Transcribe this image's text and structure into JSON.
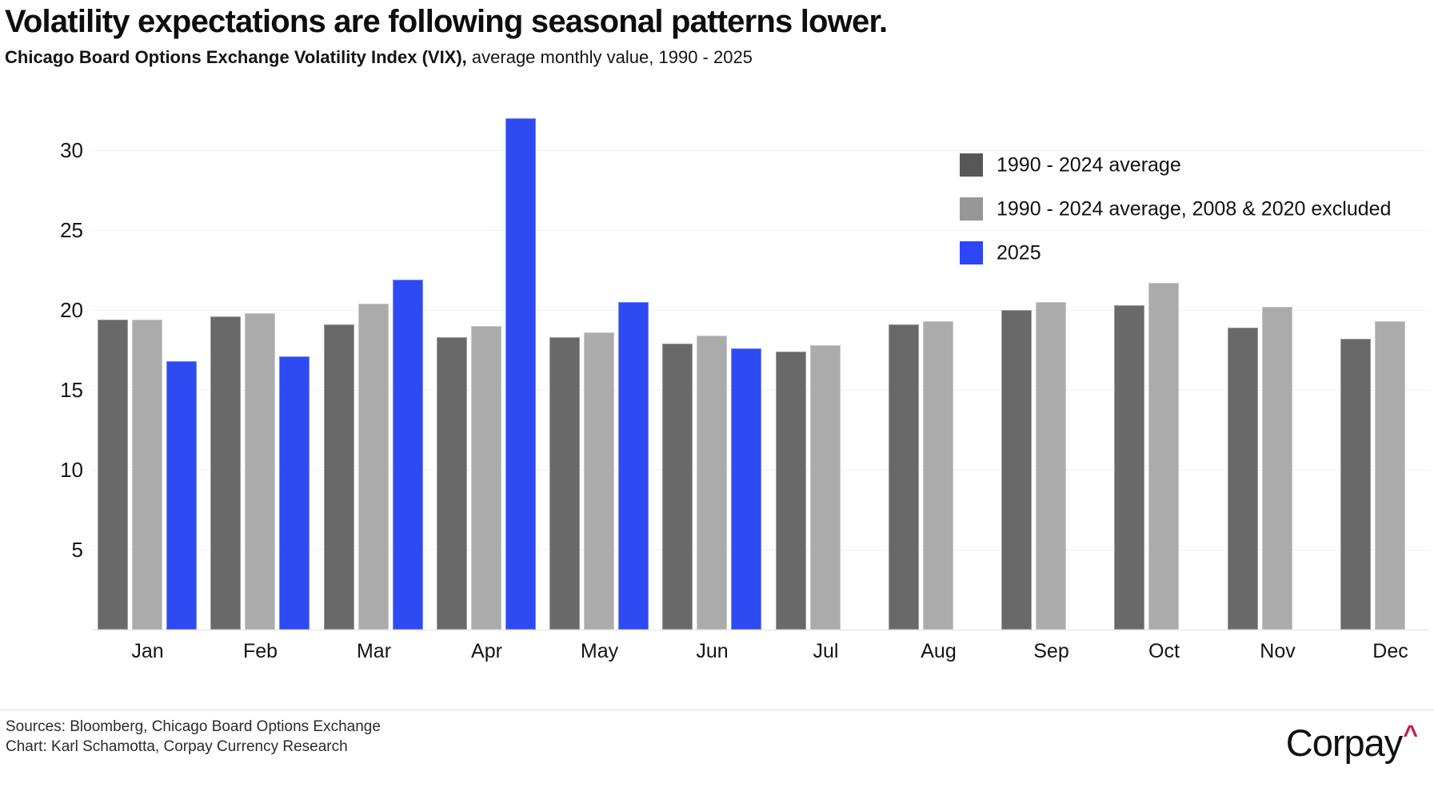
{
  "header": {
    "title": "Volatility expectations are following seasonal patterns lower.",
    "subtitle_bold": "Chicago Board Options Exchange Volatility Index (VIX),",
    "subtitle_rest": " average monthly value, 1990 - 2025"
  },
  "legend": [
    {
      "label": "1990 - 2024 average",
      "color": "#575757"
    },
    {
      "label": "1990 - 2024 average, 2008 & 2020 excluded",
      "color": "#979797"
    },
    {
      "label": "2025",
      "color": "#2b45f7"
    }
  ],
  "chart_data": {
    "type": "bar",
    "title": "Volatility expectations are following seasonal patterns lower.",
    "subtitle": "Chicago Board Options Exchange Volatility Index (VIX), average monthly value, 1990 - 2025",
    "categories": [
      "Jan",
      "Feb",
      "Mar",
      "Apr",
      "May",
      "Jun",
      "Jul",
      "Aug",
      "Sep",
      "Oct",
      "Nov",
      "Dec"
    ],
    "series": [
      {
        "name": "1990 - 2024 average",
        "color": "#696969",
        "values": [
          19.4,
          19.6,
          19.1,
          18.3,
          18.3,
          17.9,
          17.4,
          19.1,
          20.0,
          20.3,
          18.9,
          18.2
        ]
      },
      {
        "name": "1990 - 2024 average, 2008 & 2020 excluded",
        "color": "#ababab",
        "values": [
          19.4,
          19.8,
          20.4,
          19.0,
          18.6,
          18.4,
          17.8,
          19.3,
          20.5,
          21.7,
          20.2,
          19.3
        ]
      },
      {
        "name": "2025",
        "color": "#2e4bf3",
        "values": [
          16.8,
          17.1,
          21.9,
          32.0,
          20.5,
          17.6,
          null,
          null,
          null,
          null,
          null,
          null
        ]
      }
    ],
    "xlabel": "",
    "ylabel": "",
    "y_ticks": [
      5,
      10,
      15,
      20,
      25,
      30
    ],
    "ylim": [
      0,
      33
    ],
    "grid": true,
    "legend_position": "top-right"
  },
  "footer": {
    "sources": "Sources: Bloomberg, Chicago Board Options Exchange",
    "credit": "Chart: Karl Schamotta, Corpay Currency Research",
    "logo_text": "Corpay",
    "logo_caret": "^",
    "logo_caret_color": "#c22044"
  }
}
